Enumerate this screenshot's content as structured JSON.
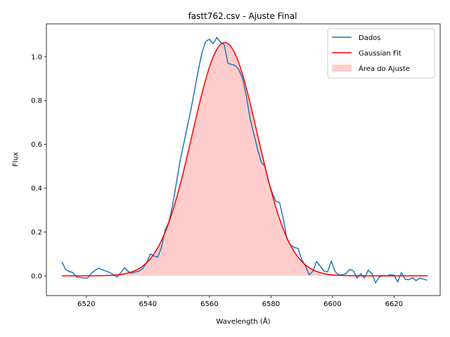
{
  "chart_data": {
    "type": "line",
    "title": "fastt762.csv - Ajuste Final",
    "xlabel": "Wavelength (Å)",
    "ylabel": "Flux",
    "xlim": [
      6507,
      6635
    ],
    "ylim": [
      -0.09,
      1.15
    ],
    "xticks": [
      6520,
      6540,
      6560,
      6580,
      6600,
      6620
    ],
    "xtick_labels": [
      "6520",
      "6540",
      "6560",
      "6580",
      "6600",
      "6620"
    ],
    "yticks": [
      0.0,
      0.2,
      0.4,
      0.6,
      0.8,
      1.0
    ],
    "ytick_labels": [
      "0.0",
      "0.2",
      "0.4",
      "0.6",
      "0.8",
      "1.0"
    ],
    "grid": false,
    "legend_position": "top-right",
    "colors": {
      "data": "#1f77b4",
      "fit": "#ff0000",
      "area": "#ff9999"
    },
    "legend": [
      {
        "label": "Dados",
        "kind": "line",
        "color": "#1f77b4"
      },
      {
        "label": "Gaussian Fit",
        "kind": "line",
        "color": "#ff0000"
      },
      {
        "label": "Área do Ajuste",
        "kind": "patch",
        "color": "#ff9999"
      }
    ],
    "series": [
      {
        "name": "Dados",
        "color": "#1f77b4",
        "x": [
          6512,
          6513.2,
          6514.4,
          6515.6,
          6516.8,
          6518,
          6519.2,
          6520.4,
          6521.6,
          6522.8,
          6524,
          6525.2,
          6526.4,
          6527.6,
          6528.8,
          6530,
          6531.2,
          6532.4,
          6533.6,
          6534.8,
          6536,
          6537.2,
          6538.4,
          6539.6,
          6540.8,
          6542,
          6543.2,
          6544.4,
          6545.6,
          6546.8,
          6548,
          6549.2,
          6550.4,
          6551.6,
          6552.8,
          6554,
          6555.2,
          6556.4,
          6557.6,
          6558.8,
          6560,
          6561.2,
          6562.4,
          6563.6,
          6564.8,
          6566,
          6567.2,
          6568.4,
          6569.6,
          6570.8,
          6572,
          6573.2,
          6574.4,
          6575.6,
          6576.8,
          6578,
          6579.2,
          6580.4,
          6581.6,
          6582.8,
          6584,
          6585.2,
          6586.4,
          6587.6,
          6588.8,
          6590,
          6591.2,
          6592.4,
          6593.6,
          6594.8,
          6596,
          6597.2,
          6598.4,
          6599.6,
          6600.8,
          6602,
          6603.2,
          6604.4,
          6605.6,
          6606.8,
          6608,
          6609.2,
          6610.4,
          6611.6,
          6612.8,
          6614,
          6615.2,
          6616.4,
          6617.6,
          6618.8,
          6620,
          6621.2,
          6622.4,
          6623.6,
          6624.8,
          6626,
          6627.2,
          6628.4,
          6629.6,
          6630.8
        ],
        "y": [
          0.065,
          0.03,
          0.02,
          0.015,
          -0.005,
          -0.008,
          -0.01,
          -0.01,
          0.012,
          0.025,
          0.035,
          0.028,
          0.022,
          0.015,
          0.005,
          -0.005,
          0.015,
          0.038,
          0.02,
          0.012,
          0.018,
          0.022,
          0.035,
          0.06,
          0.1,
          0.09,
          0.085,
          0.13,
          0.21,
          0.245,
          0.32,
          0.42,
          0.52,
          0.6,
          0.68,
          0.76,
          0.85,
          0.94,
          1.02,
          1.07,
          1.08,
          1.06,
          1.088,
          1.065,
          1.055,
          0.97,
          0.965,
          0.96,
          0.94,
          0.9,
          0.82,
          0.72,
          0.65,
          0.58,
          0.52,
          0.5,
          0.43,
          0.38,
          0.34,
          0.335,
          0.26,
          0.17,
          0.14,
          0.13,
          0.125,
          0.075,
          0.045,
          0.005,
          0.02,
          0.065,
          0.045,
          0.022,
          0.018,
          0.068,
          0.02,
          0.005,
          0.005,
          0.01,
          0.03,
          0.022,
          -0.01,
          0.01,
          -0.01,
          0.026,
          0.01,
          -0.032,
          -0.005,
          0.002,
          0.0,
          0.005,
          0.003,
          -0.028,
          0.015,
          -0.015,
          -0.018,
          -0.008,
          -0.022,
          -0.01,
          -0.015,
          -0.02
        ]
      },
      {
        "name": "Gaussian Fit",
        "color": "#ff0000",
        "model": "gaussian",
        "amplitude": 1.065,
        "center": 6565,
        "sigma": 10.6,
        "x_range": [
          6512,
          6631
        ]
      }
    ]
  }
}
